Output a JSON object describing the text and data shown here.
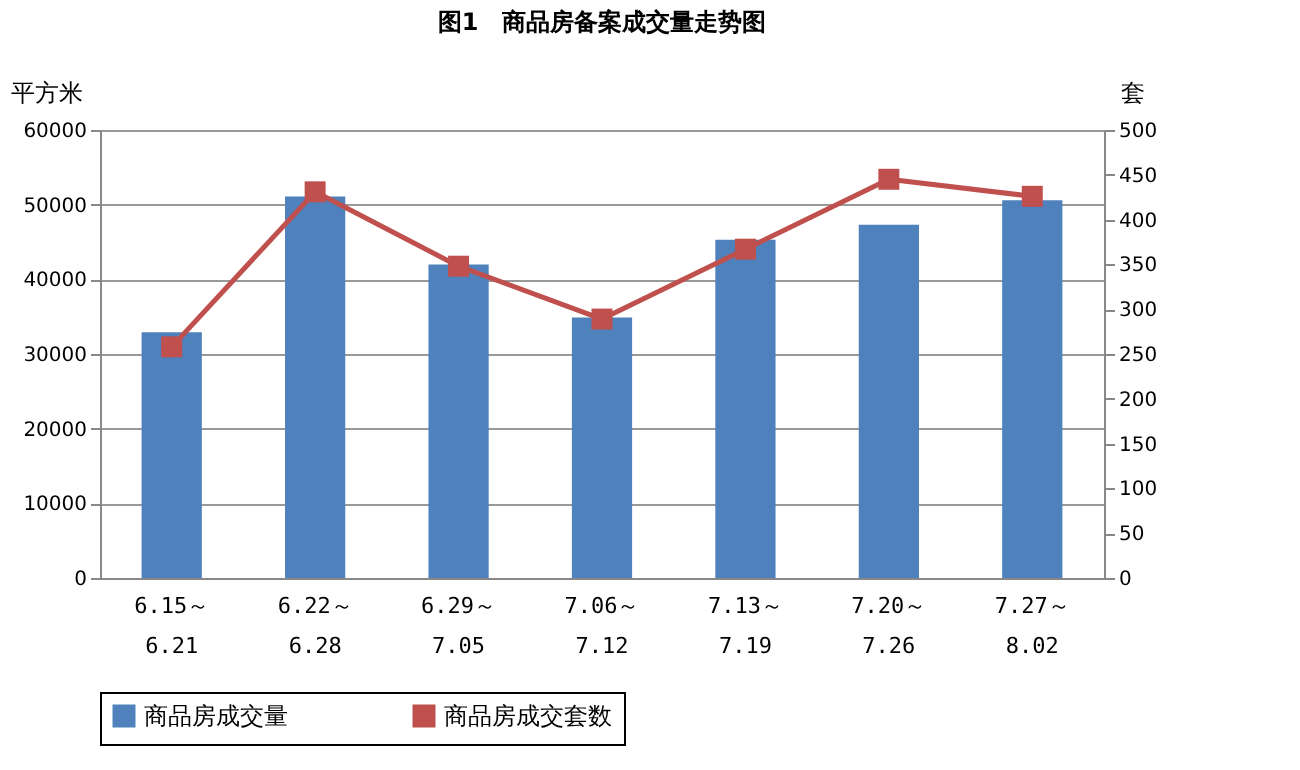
{
  "chart_data": {
    "type": "bar",
    "title": "图1　商品房备案成交量走势图",
    "categories": [
      "6.15～6.21",
      "6.22～6.28",
      "6.29～7.05",
      "7.06～7.12",
      "7.13～7.19",
      "7.20～7.26",
      "7.27～8.02"
    ],
    "series": [
      {
        "name": "商品房成交量",
        "color": "#4f81bd",
        "values": [
          32900,
          51100,
          42000,
          34900,
          45300,
          47300,
          50600
        ]
      },
      {
        "name": "商品房成交套数",
        "color": "#c0504d",
        "type": "line",
        "axis": "y2",
        "marker": "square",
        "values": [
          258,
          431,
          348,
          289,
          367,
          445,
          426
        ]
      }
    ],
    "ylabel": "平方米",
    "y2label": "套",
    "ylim": [
      0,
      60000
    ],
    "yticks": [
      0,
      10000,
      20000,
      30000,
      40000,
      50000,
      60000
    ],
    "y2lim": [
      0,
      500
    ],
    "y2ticks": [
      0,
      50,
      100,
      150,
      200,
      250,
      300,
      350,
      400,
      450,
      500
    ],
    "grid": "y",
    "legend": "bottom"
  }
}
